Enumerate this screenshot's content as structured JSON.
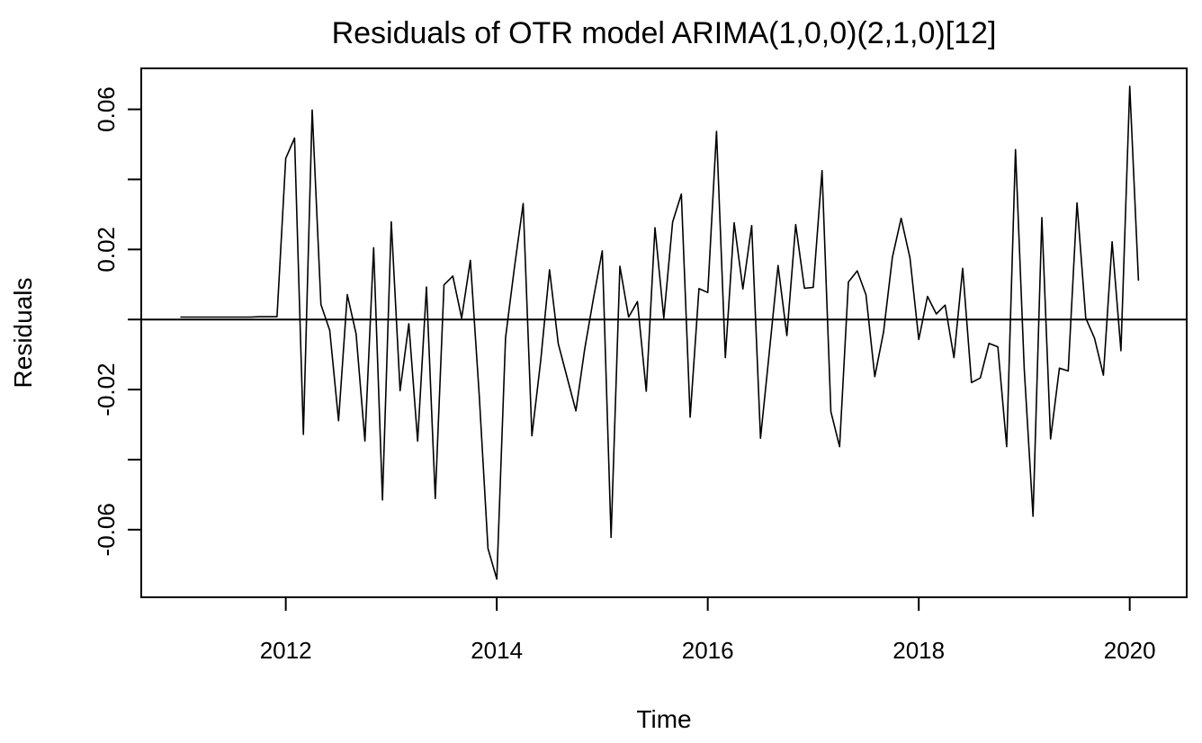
{
  "chart_data": {
    "type": "line",
    "title": "Residuals of OTR model ARIMA(1,0,0)(2,1,0)[12]",
    "xlabel": "Time",
    "ylabel": "Residuals",
    "xlim": [
      2010.63,
      2020.54
    ],
    "ylim": [
      -0.0793,
      0.0717
    ],
    "xticks": [
      2012,
      2014,
      2016,
      2018,
      2020
    ],
    "xtick_labels": [
      "2012",
      "2014",
      "2016",
      "2018",
      "2020"
    ],
    "yticks": [
      -0.06,
      -0.04,
      -0.02,
      0,
      0.02,
      0.04,
      0.06
    ],
    "ytick_labels": [
      "-0.06",
      "",
      "-0.02",
      "",
      "0.02",
      "",
      "0.06"
    ],
    "reference_line": 0,
    "grid": false,
    "line_color": "#000000",
    "series": [
      {
        "x": [
          2011.0,
          2011.0833,
          2011.1667,
          2011.25,
          2011.3333,
          2011.4167,
          2011.5,
          2011.5833,
          2011.6667,
          2011.75,
          2011.8333,
          2011.9167,
          2012.0,
          2012.0833,
          2012.1667,
          2012.25,
          2012.3333,
          2012.4167,
          2012.5,
          2012.5833,
          2012.6667,
          2012.75,
          2012.8333,
          2012.9167,
          2013.0,
          2013.0833,
          2013.1667,
          2013.25,
          2013.3333,
          2013.4167,
          2013.5,
          2013.5833,
          2013.6667,
          2013.75,
          2013.8333,
          2013.9167,
          2014.0,
          2014.0833,
          2014.1667,
          2014.25,
          2014.3333,
          2014.4167,
          2014.5,
          2014.5833,
          2014.6667,
          2014.75,
          2014.8333,
          2014.9167,
          2015.0,
          2015.0833,
          2015.1667,
          2015.25,
          2015.3333,
          2015.4167,
          2015.5,
          2015.5833,
          2015.6667,
          2015.75,
          2015.8333,
          2015.9167,
          2016.0,
          2016.0833,
          2016.1667,
          2016.25,
          2016.3333,
          2016.4167,
          2016.5,
          2016.5833,
          2016.6667,
          2016.75,
          2016.8333,
          2016.9167,
          2017.0,
          2017.0833,
          2017.1667,
          2017.25,
          2017.3333,
          2017.4167,
          2017.5,
          2017.5833,
          2017.6667,
          2017.75,
          2017.8333,
          2017.9167,
          2018.0,
          2018.0833,
          2018.1667,
          2018.25,
          2018.3333,
          2018.4167,
          2018.5,
          2018.5833,
          2018.6667,
          2018.75,
          2018.8333,
          2018.9167,
          2019.0,
          2019.0833,
          2019.1667,
          2019.25,
          2019.3333,
          2019.4167,
          2019.5,
          2019.5833,
          2019.6667,
          2019.75,
          2019.8333,
          2019.9167,
          2020.0,
          2020.0833
        ],
        "values": [
          0.0007,
          0.0007,
          0.0007,
          0.0007,
          0.0007,
          0.0007,
          0.0007,
          0.0007,
          0.0007,
          0.0008,
          0.0008,
          0.0008,
          0.046,
          0.0518,
          -0.0328,
          0.0598,
          0.0043,
          -0.0031,
          -0.0289,
          0.0071,
          -0.0041,
          -0.0347,
          0.0205,
          -0.0515,
          0.0279,
          -0.0203,
          -0.0012,
          -0.0347,
          0.0093,
          -0.0511,
          0.0099,
          0.0124,
          0.0004,
          0.0169,
          -0.0214,
          -0.0654,
          -0.0741,
          -0.0052,
          0.0147,
          0.0331,
          -0.0332,
          -0.0117,
          0.0142,
          -0.0069,
          -0.0165,
          -0.0261,
          -0.0084,
          0.006,
          0.0196,
          -0.0622,
          0.0152,
          0.0007,
          0.0051,
          -0.0205,
          0.0262,
          0.0004,
          0.0278,
          0.0358,
          -0.0279,
          0.0088,
          0.0077,
          0.0537,
          -0.0109,
          0.0276,
          0.0087,
          0.0268,
          -0.0339,
          -0.0093,
          0.0154,
          -0.0046,
          0.0271,
          0.0089,
          0.0092,
          0.0425,
          -0.0263,
          -0.0363,
          0.0107,
          0.0139,
          0.0071,
          -0.0163,
          -0.0035,
          0.0178,
          0.0289,
          0.0176,
          -0.0057,
          0.0066,
          0.0016,
          0.0041,
          -0.0109,
          0.0146,
          -0.018,
          -0.0167,
          -0.0068,
          -0.0078,
          -0.0363,
          0.0485,
          -0.014,
          -0.0562,
          0.0291,
          -0.0341,
          -0.0139,
          -0.0147,
          0.0333,
          0.0004,
          -0.0054,
          -0.0159,
          0.0222,
          -0.0089,
          0.0666,
          0.0111
        ]
      }
    ]
  }
}
